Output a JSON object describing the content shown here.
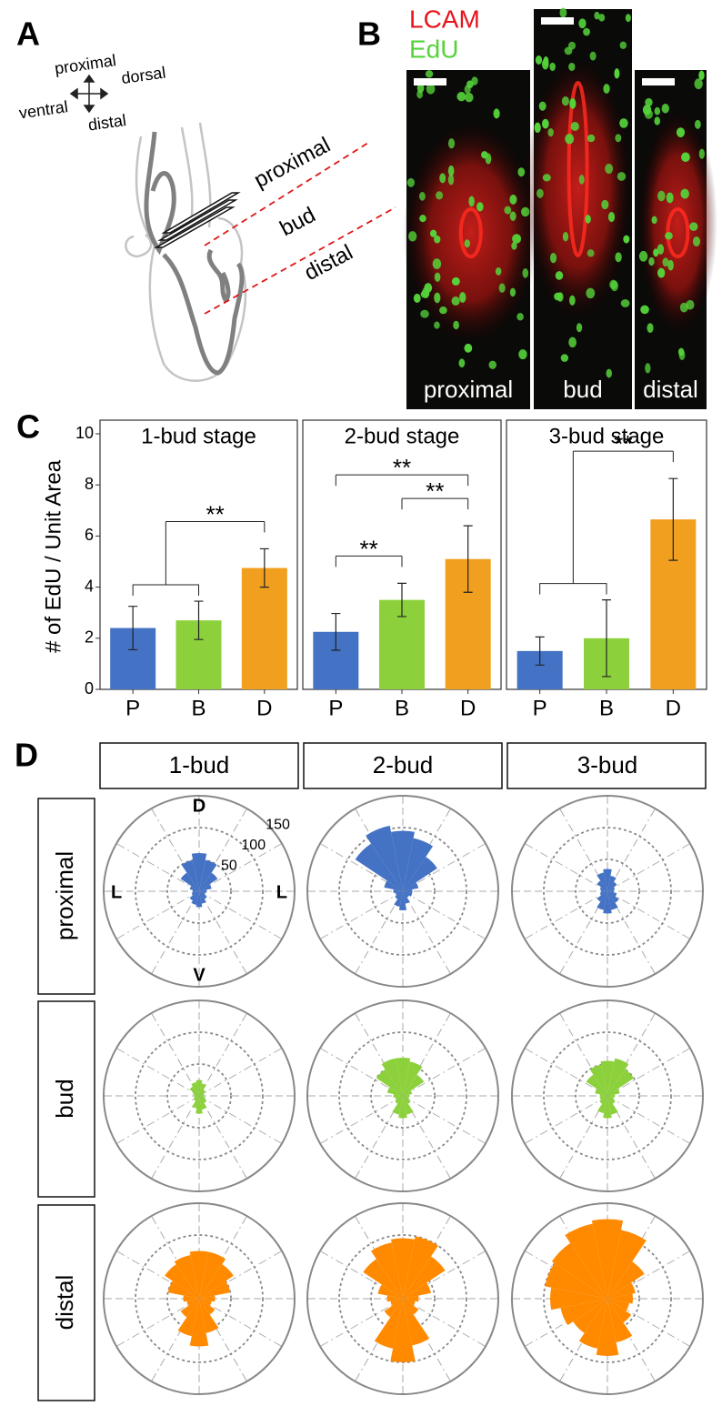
{
  "panel_labels": [
    "A",
    "B",
    "C",
    "D"
  ],
  "diagram": {
    "compass": [
      "proximal",
      "ventral",
      "dorsal",
      "distal"
    ],
    "regions": [
      "proximal",
      "bud",
      "distal"
    ]
  },
  "micrographs": {
    "stains": [
      {
        "name": "LCAM",
        "color": "#e8141c"
      },
      {
        "name": "EdU",
        "color": "#55d33a"
      }
    ],
    "regions": [
      "proximal",
      "bud",
      "distal"
    ]
  },
  "rose_columns": [
    "1-bud",
    "2-bud",
    "3-bud"
  ],
  "rose_rows": [
    "proximal",
    "bud",
    "distal"
  ],
  "chart_data": [
    {
      "type": "bar",
      "title": "1-bud stage",
      "ylabel": "# of EdU / Unit Area",
      "categories": [
        "P",
        "B",
        "D"
      ],
      "values": [
        2.4,
        2.7,
        4.75
      ],
      "errors": [
        0.85,
        0.75,
        0.75
      ],
      "colors": [
        "#4472c4",
        "#8cd13c",
        "#f0a01e"
      ],
      "ylim": [
        0,
        10
      ],
      "yticks": [
        0,
        2,
        4,
        6,
        8,
        10
      ],
      "significance": [
        {
          "label": "**",
          "groups": [
            [
              0,
              1
            ],
            [
              2
            ]
          ]
        }
      ]
    },
    {
      "type": "bar",
      "title": "2-bud stage",
      "categories": [
        "P",
        "B",
        "D"
      ],
      "values": [
        2.25,
        3.5,
        5.1
      ],
      "errors": [
        0.72,
        0.65,
        1.3
      ],
      "colors": [
        "#4472c4",
        "#8cd13c",
        "#f0a01e"
      ],
      "ylim": [
        0,
        10
      ],
      "significance": [
        {
          "label": "**",
          "groups": [
            [
              0
            ],
            [
              1
            ]
          ]
        },
        {
          "label": "**",
          "groups": [
            [
              1
            ],
            [
              2
            ]
          ]
        },
        {
          "label": "**",
          "groups": [
            [
              0
            ],
            [
              2
            ]
          ]
        }
      ]
    },
    {
      "type": "bar",
      "title": "3-bud stage",
      "categories": [
        "P",
        "B",
        "D"
      ],
      "values": [
        1.5,
        2.0,
        6.65
      ],
      "errors": [
        0.55,
        1.5,
        1.6
      ],
      "colors": [
        "#4472c4",
        "#8cd13c",
        "#f0a01e"
      ],
      "ylim": [
        0,
        10
      ],
      "significance": [
        {
          "label": "**",
          "groups": [
            [
              0,
              1
            ],
            [
              2
            ]
          ]
        }
      ]
    },
    {
      "type": "rose",
      "color": "#4472c4",
      "rlim": [
        0,
        150
      ],
      "rticks": [
        50,
        100,
        150
      ],
      "rtick_labels": true,
      "direction_labels": [
        "D",
        "L",
        "L",
        "V"
      ],
      "values": [
        60,
        50,
        35,
        20,
        12,
        10,
        15,
        20,
        25,
        22,
        18,
        12,
        10,
        15,
        35,
        50
      ]
    },
    {
      "type": "rose",
      "color": "#4472c4",
      "rlim": [
        0,
        150
      ],
      "rticks": [
        50,
        100,
        150
      ],
      "values": [
        95,
        85,
        65,
        25,
        15,
        15,
        12,
        20,
        30,
        25,
        15,
        12,
        15,
        30,
        90,
        105
      ]
    },
    {
      "type": "rose",
      "color": "#4472c4",
      "rlim": [
        0,
        150
      ],
      "rticks": [
        50,
        100,
        150
      ],
      "values": [
        35,
        25,
        18,
        12,
        10,
        15,
        22,
        30,
        35,
        30,
        20,
        12,
        10,
        12,
        20,
        30
      ]
    },
    {
      "type": "rose",
      "color": "#8cd13c",
      "rlim": [
        0,
        150
      ],
      "rticks": [
        50,
        100,
        150
      ],
      "values": [
        25,
        20,
        12,
        8,
        8,
        10,
        14,
        22,
        28,
        20,
        10,
        8,
        8,
        10,
        18,
        22
      ]
    },
    {
      "type": "rose",
      "color": "#8cd13c",
      "rlim": [
        0,
        150
      ],
      "rticks": [
        50,
        100,
        150
      ],
      "values": [
        60,
        55,
        40,
        15,
        10,
        10,
        15,
        30,
        35,
        30,
        15,
        12,
        15,
        25,
        50,
        60
      ]
    },
    {
      "type": "rose",
      "color": "#8cd13c",
      "rlim": [
        0,
        150
      ],
      "rticks": [
        50,
        100,
        150
      ],
      "values": [
        55,
        60,
        50,
        20,
        12,
        10,
        15,
        30,
        35,
        28,
        15,
        12,
        12,
        20,
        40,
        50
      ]
    },
    {
      "type": "rose",
      "color": "#ff8a00",
      "rlim": [
        0,
        150
      ],
      "rticks": [
        50,
        100,
        150
      ],
      "values": [
        75,
        75,
        65,
        50,
        25,
        20,
        30,
        55,
        75,
        60,
        35,
        20,
        25,
        50,
        65,
        70
      ]
    },
    {
      "type": "rose",
      "color": "#ff8a00",
      "rlim": [
        0,
        150
      ],
      "rticks": [
        50,
        100,
        150
      ],
      "values": [
        95,
        100,
        80,
        45,
        25,
        20,
        30,
        75,
        100,
        80,
        35,
        20,
        25,
        40,
        75,
        90
      ]
    },
    {
      "type": "rose",
      "color": "#ff8a00",
      "rlim": [
        0,
        150
      ],
      "rticks": [
        50,
        100,
        150
      ],
      "values": [
        125,
        110,
        70,
        45,
        40,
        35,
        45,
        70,
        90,
        80,
        65,
        75,
        90,
        100,
        105,
        120
      ]
    }
  ]
}
